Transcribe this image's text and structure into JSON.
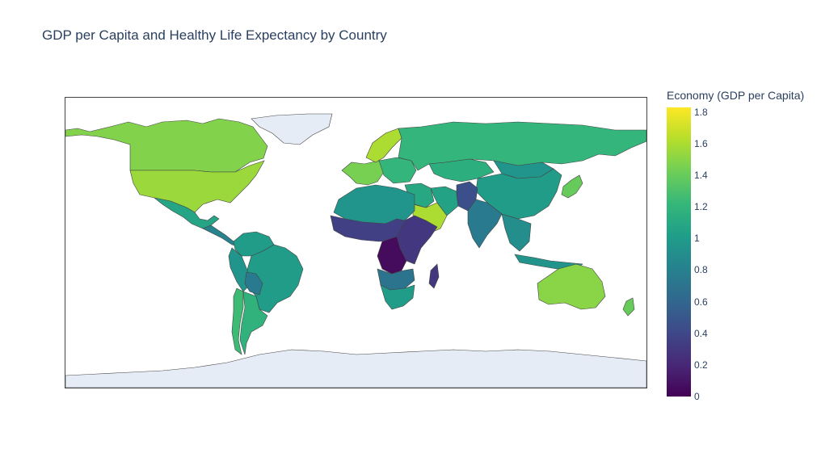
{
  "title": "GDP per Capita and Healthy Life Expectancy by Country",
  "chart_data": {
    "type": "choropleth",
    "projection": "equirectangular world map",
    "color_metric": "Economy (GDP per Capita)",
    "colorscale": "Viridis",
    "range": [
      0,
      1.83
    ],
    "missing_color": "#e5ecf6",
    "land_border_color": "#444444",
    "colorbar": {
      "title": "Economy (GDP per Capita)",
      "ticks": [
        "1.8",
        "1.6",
        "1.4",
        "1.2",
        "1",
        "0.8",
        "0.6",
        "0.4",
        "0.2",
        "0"
      ],
      "tick_values": [
        1.8,
        1.6,
        1.4,
        1.2,
        1.0,
        0.8,
        0.6,
        0.4,
        0.2,
        0
      ],
      "stops": [
        "#440154",
        "#482878",
        "#3e4989",
        "#31688e",
        "#26828e",
        "#1f9e89",
        "#35b779",
        "#6ece58",
        "#b5de2b",
        "#fde725"
      ]
    },
    "regions": [
      {
        "name": "Canada",
        "value": 1.48
      },
      {
        "name": "United States",
        "value": 1.55
      },
      {
        "name": "Mexico",
        "value": 1.07
      },
      {
        "name": "Central America",
        "value": 0.82
      },
      {
        "name": "Colombia / Venezuela",
        "value": 1.0
      },
      {
        "name": "Brazil",
        "value": 1.0
      },
      {
        "name": "Peru / Ecuador",
        "value": 0.95
      },
      {
        "name": "Bolivia",
        "value": 0.75
      },
      {
        "name": "Chile",
        "value": 1.25
      },
      {
        "name": "Argentina",
        "value": 1.18
      },
      {
        "name": "Western Europe",
        "value": 1.45
      },
      {
        "name": "Scandinavia",
        "value": 1.6
      },
      {
        "name": "Eastern Europe",
        "value": 1.2
      },
      {
        "name": "Russia",
        "value": 1.2
      },
      {
        "name": "Kazakhstan",
        "value": 1.15
      },
      {
        "name": "Mongolia",
        "value": 0.95
      },
      {
        "name": "China",
        "value": 1.0
      },
      {
        "name": "Japan / Korea",
        "value": 1.4
      },
      {
        "name": "Middle East",
        "value": 1.1
      },
      {
        "name": "Saudi Arabia / Gulf",
        "value": 1.6
      },
      {
        "name": "Iran",
        "value": 1.05
      },
      {
        "name": "Afghanistan / Pakistan",
        "value": 0.45
      },
      {
        "name": "India",
        "value": 0.75
      },
      {
        "name": "Southeast Asia",
        "value": 0.9
      },
      {
        "name": "Indonesia",
        "value": 0.95
      },
      {
        "name": "Australia",
        "value": 1.5
      },
      {
        "name": "New Zealand",
        "value": 1.4
      },
      {
        "name": "North Africa",
        "value": 0.95
      },
      {
        "name": "Sahel",
        "value": 0.35
      },
      {
        "name": "Ethiopia / East Africa",
        "value": 0.3
      },
      {
        "name": "DR Congo",
        "value": 0.05
      },
      {
        "name": "Angola / Zambia",
        "value": 0.7
      },
      {
        "name": "Southern Africa",
        "value": 1.0
      },
      {
        "name": "Madagascar",
        "value": 0.3
      }
    ]
  }
}
